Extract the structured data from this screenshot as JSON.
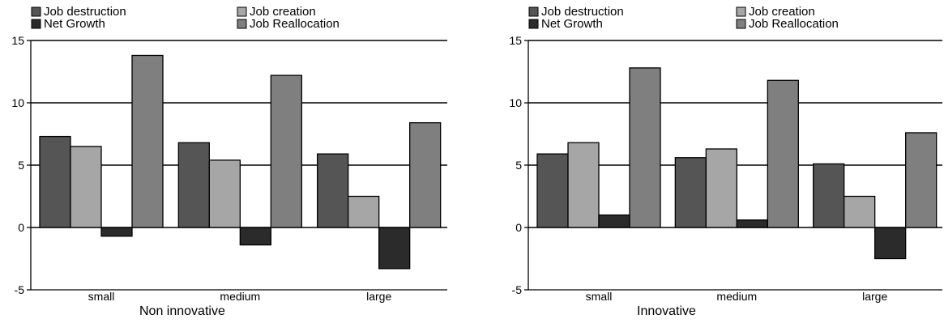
{
  "chart_data": [
    {
      "type": "bar",
      "xlabel": "Non innovative",
      "ylabel": "",
      "categories": [
        "small",
        "medium",
        "large"
      ],
      "ylim": [
        -5,
        15
      ],
      "yticks": [
        -5,
        0,
        5,
        10,
        15
      ],
      "grid": true,
      "legend_position": "top",
      "series": [
        {
          "name": "Job destruction",
          "color": "#555555",
          "values": [
            7.3,
            6.8,
            5.9
          ]
        },
        {
          "name": "Job creation",
          "color": "#a6a6a6",
          "values": [
            6.5,
            5.4,
            2.5
          ]
        },
        {
          "name": "Net Growth",
          "color": "#2b2b2b",
          "values": [
            -0.7,
            -1.4,
            -3.3
          ]
        },
        {
          "name": "Job Reallocation",
          "color": "#7f7f7f",
          "values": [
            13.8,
            12.2,
            8.4
          ]
        }
      ]
    },
    {
      "type": "bar",
      "xlabel": "Innovative",
      "ylabel": "",
      "categories": [
        "small",
        "medium",
        "large"
      ],
      "ylim": [
        -5,
        15
      ],
      "yticks": [
        -5,
        0,
        5,
        10,
        15
      ],
      "grid": true,
      "legend_position": "top",
      "series": [
        {
          "name": "Job destruction",
          "color": "#555555",
          "values": [
            5.9,
            5.6,
            5.1
          ]
        },
        {
          "name": "Job creation",
          "color": "#a6a6a6",
          "values": [
            6.8,
            6.3,
            2.5
          ]
        },
        {
          "name": "Net Growth",
          "color": "#2b2b2b",
          "values": [
            1.0,
            0.6,
            -2.5
          ]
        },
        {
          "name": "Job Reallocation",
          "color": "#7f7f7f",
          "values": [
            12.8,
            11.8,
            7.6
          ]
        }
      ]
    }
  ]
}
